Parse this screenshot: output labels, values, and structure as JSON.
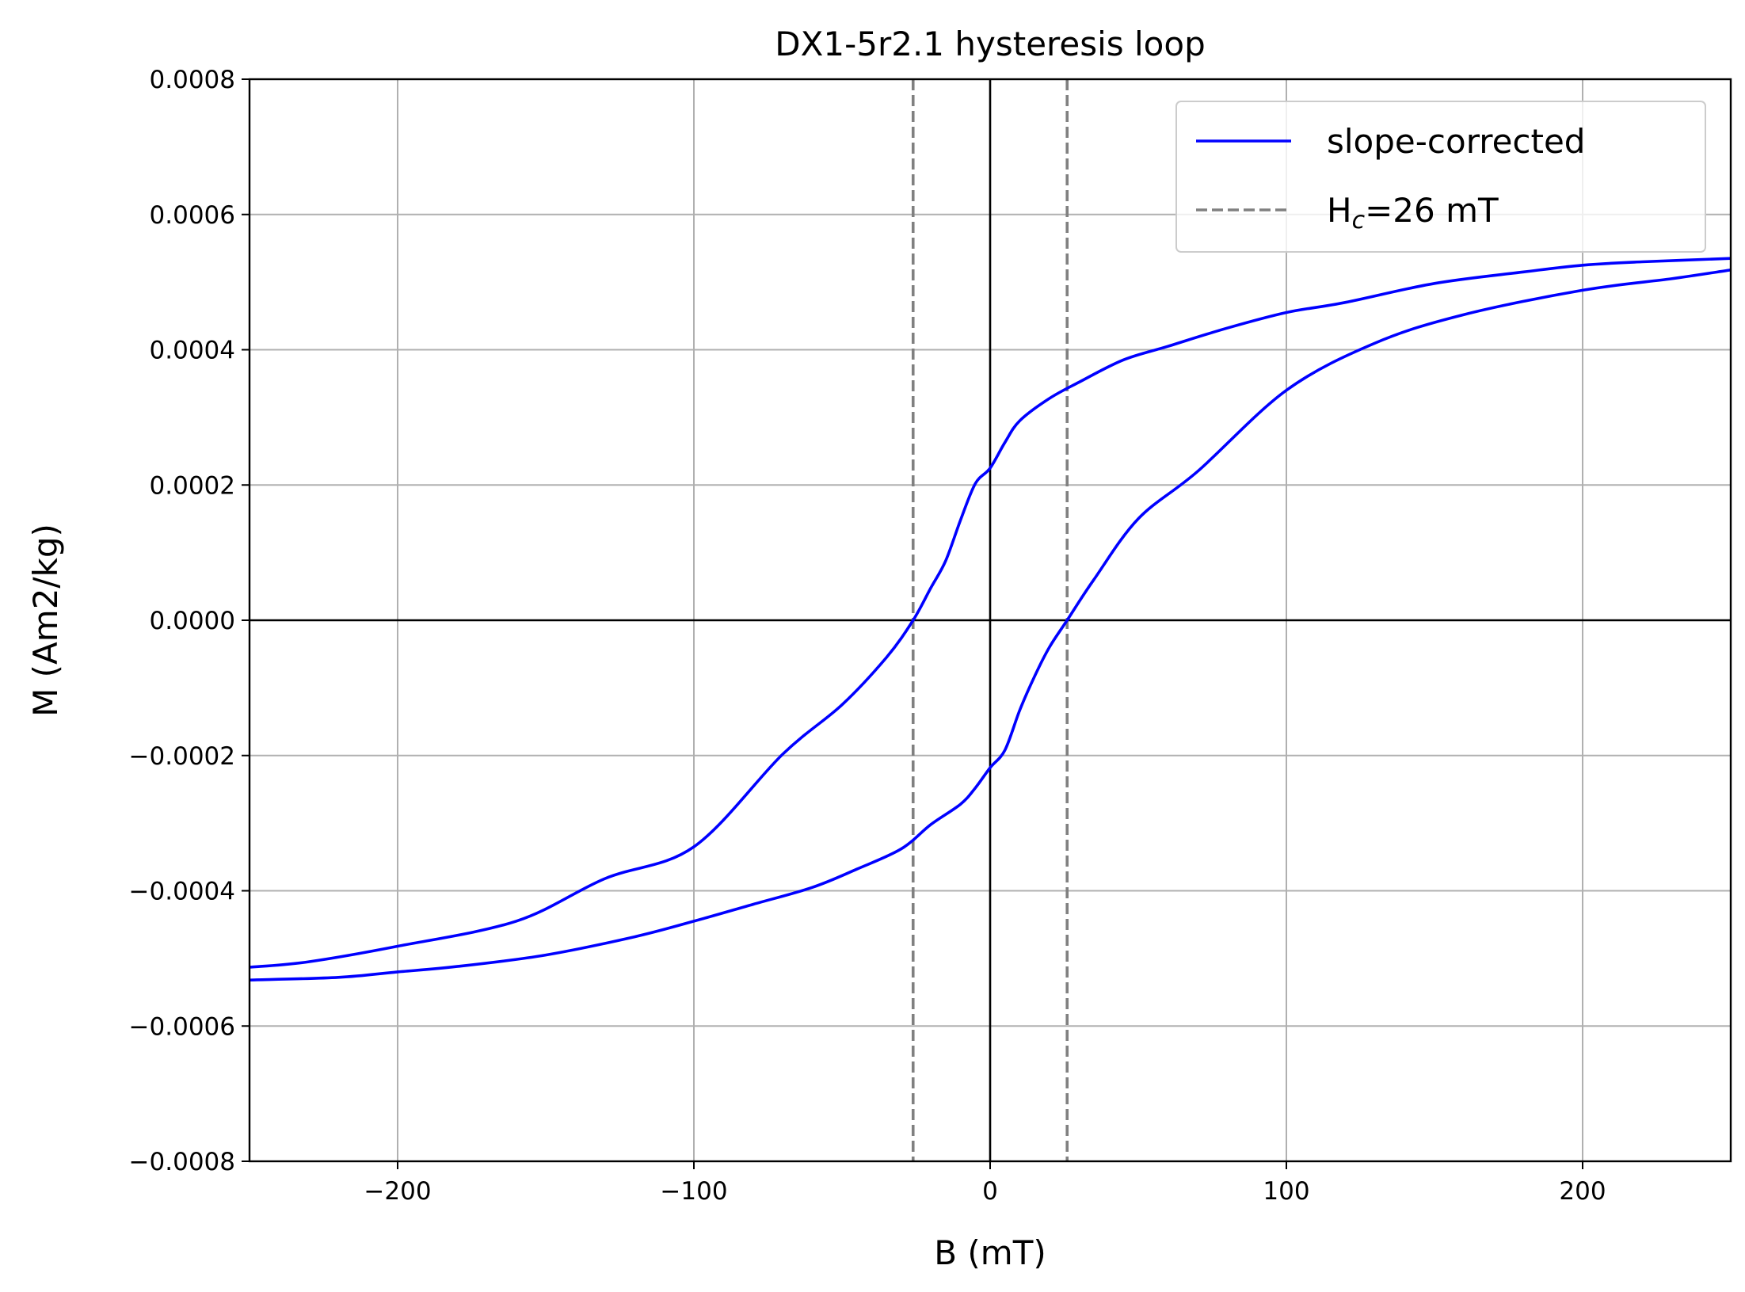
{
  "chart_data": {
    "type": "line",
    "title": "DX1-5r2.1 hysteresis loop",
    "xlabel": "B (mT)",
    "ylabel": "M (Am2/kg)",
    "xlim": [
      -250,
      250
    ],
    "ylim": [
      -0.0008,
      0.0008
    ],
    "xticks": [
      -200,
      -100,
      0,
      100,
      200
    ],
    "xtick_labels": [
      "−200",
      "−100",
      "0",
      "100",
      "200"
    ],
    "yticks": [
      -0.0008,
      -0.0006,
      -0.0004,
      -0.0002,
      0.0,
      0.0002,
      0.0004,
      0.0006,
      0.0008
    ],
    "ytick_labels": [
      "−0.0008",
      "−0.0006",
      "−0.0004",
      "−0.0002",
      "0.0000",
      "0.0002",
      "0.0004",
      "0.0006",
      "0.0008"
    ],
    "grid": true,
    "legend_position": "top-right",
    "zero_lines": {
      "x": 0,
      "y": 0
    },
    "series": [
      {
        "name": "slope-corrected",
        "color": "#0000ff",
        "style": "solid",
        "branches": [
          {
            "x": [
              250,
              220,
              200,
              180,
              150,
              120,
              100,
              80,
              60,
              45,
              30,
              20,
              10,
              5,
              0,
              -5,
              -10,
              -15,
              -20,
              -26,
              -35,
              -50,
              -70,
              -100,
              -130,
              -160,
              -200,
              -230,
              -250
            ],
            "y": [
              0.000535,
              0.00053,
              0.000525,
              0.000515,
              0.000498,
              0.00047,
              0.000455,
              0.000432,
              0.000405,
              0.000385,
              0.000352,
              0.000328,
              0.000295,
              0.000263,
              0.000225,
              0.000202,
              0.000148,
              8.8e-05,
              4.8e-05,
              0.0,
              -5.5e-05,
              -0.000125,
              -0.000198,
              -0.000335,
              -0.000382,
              -0.000445,
              -0.000482,
              -0.000505,
              -0.000513
            ]
          },
          {
            "x": [
              -250,
              -220,
              -200,
              -180,
              -150,
              -120,
              -100,
              -80,
              -60,
              -45,
              -30,
              -20,
              -10,
              -5,
              0,
              5,
              10,
              15,
              20,
              26,
              35,
              50,
              70,
              100,
              130,
              160,
              200,
              230,
              250
            ],
            "y": [
              -0.000532,
              -0.000528,
              -0.00052,
              -0.000512,
              -0.000495,
              -0.000468,
              -0.000445,
              -0.00042,
              -0.000395,
              -0.000368,
              -0.000338,
              -0.000302,
              -0.000272,
              -0.000248,
              -0.000218,
              -0.000192,
              -0.000133,
              -8.3e-05,
              -4e-05,
              0.0,
              6e-05,
              0.00015,
              0.00022,
              0.00034,
              0.00041,
              0.000452,
              0.000488,
              0.000505,
              0.000518
            ]
          }
        ]
      },
      {
        "name_prefix": "H",
        "name_subscript": "c",
        "name_suffix": "=26 mT",
        "color": "#808080",
        "style": "dashed",
        "vlines_x": [
          -26,
          26
        ]
      }
    ]
  }
}
